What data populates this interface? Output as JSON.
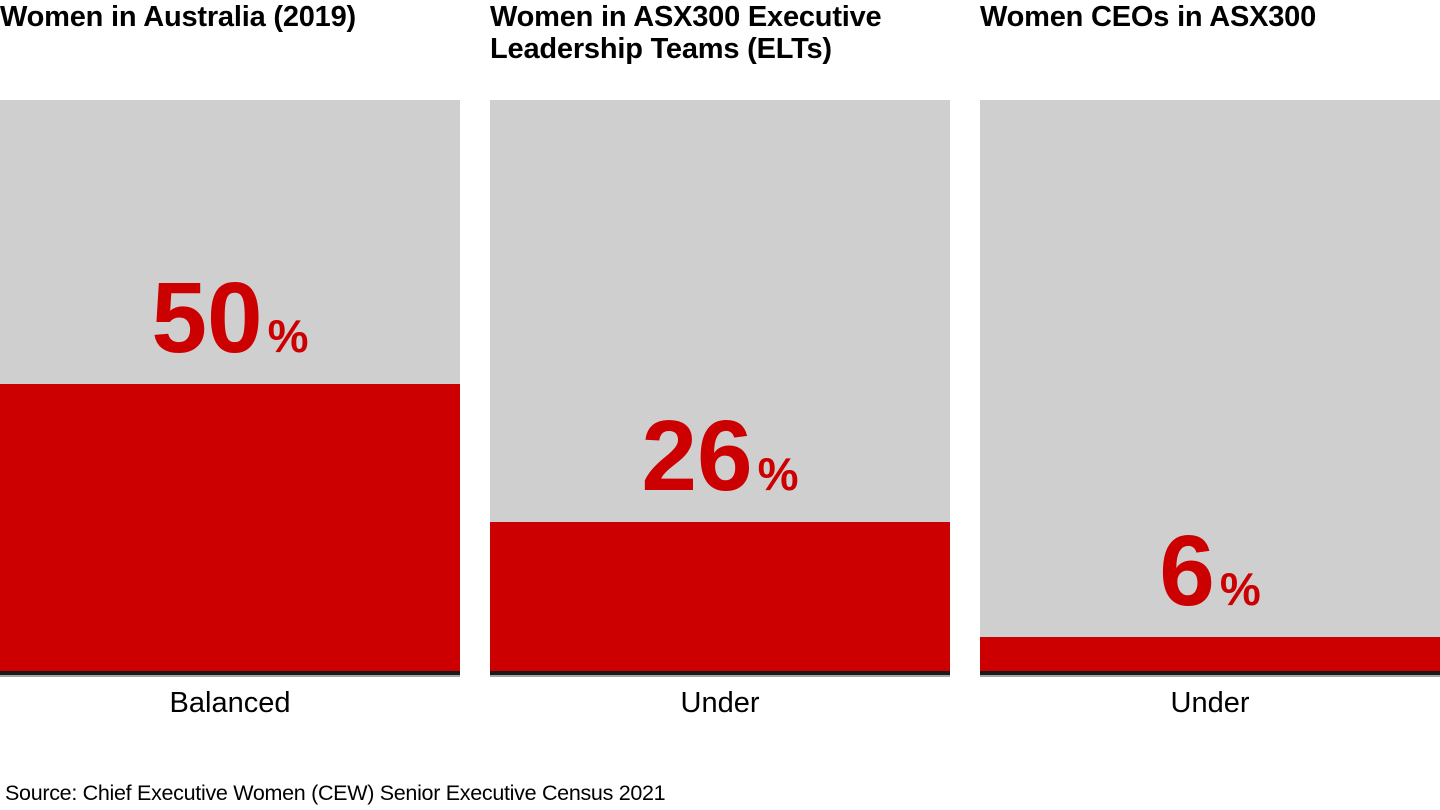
{
  "page": {
    "background": "#FFFFFF"
  },
  "colors": {
    "fill_red": "#CC0000",
    "track_gray": "#CFCFCF",
    "baseline_dark": "#1A1A1A",
    "baseline_shadow": "#A6A6A6",
    "text_black": "#000000",
    "page_bg": "#FFFFFF"
  },
  "chart_data": {
    "type": "bar",
    "subtype": "percentage-filled-columns",
    "ylim": [
      0,
      100
    ],
    "grid": false,
    "legend": "none",
    "charts": [
      {
        "title": "Women in Australia (2019)",
        "value": 50,
        "unit": "%",
        "category": "Balanced"
      },
      {
        "title": "Women in ASX300 Executive Leadership Teams (ELTs)",
        "value": 26,
        "unit": "%",
        "category": "Under"
      },
      {
        "title": "Women CEOs in ASX300",
        "value": 6,
        "unit": "%",
        "category": "Under"
      }
    ]
  },
  "footer": {
    "source": "Source: Chief Executive Women (CEW) Senior Executive Census 2021"
  }
}
